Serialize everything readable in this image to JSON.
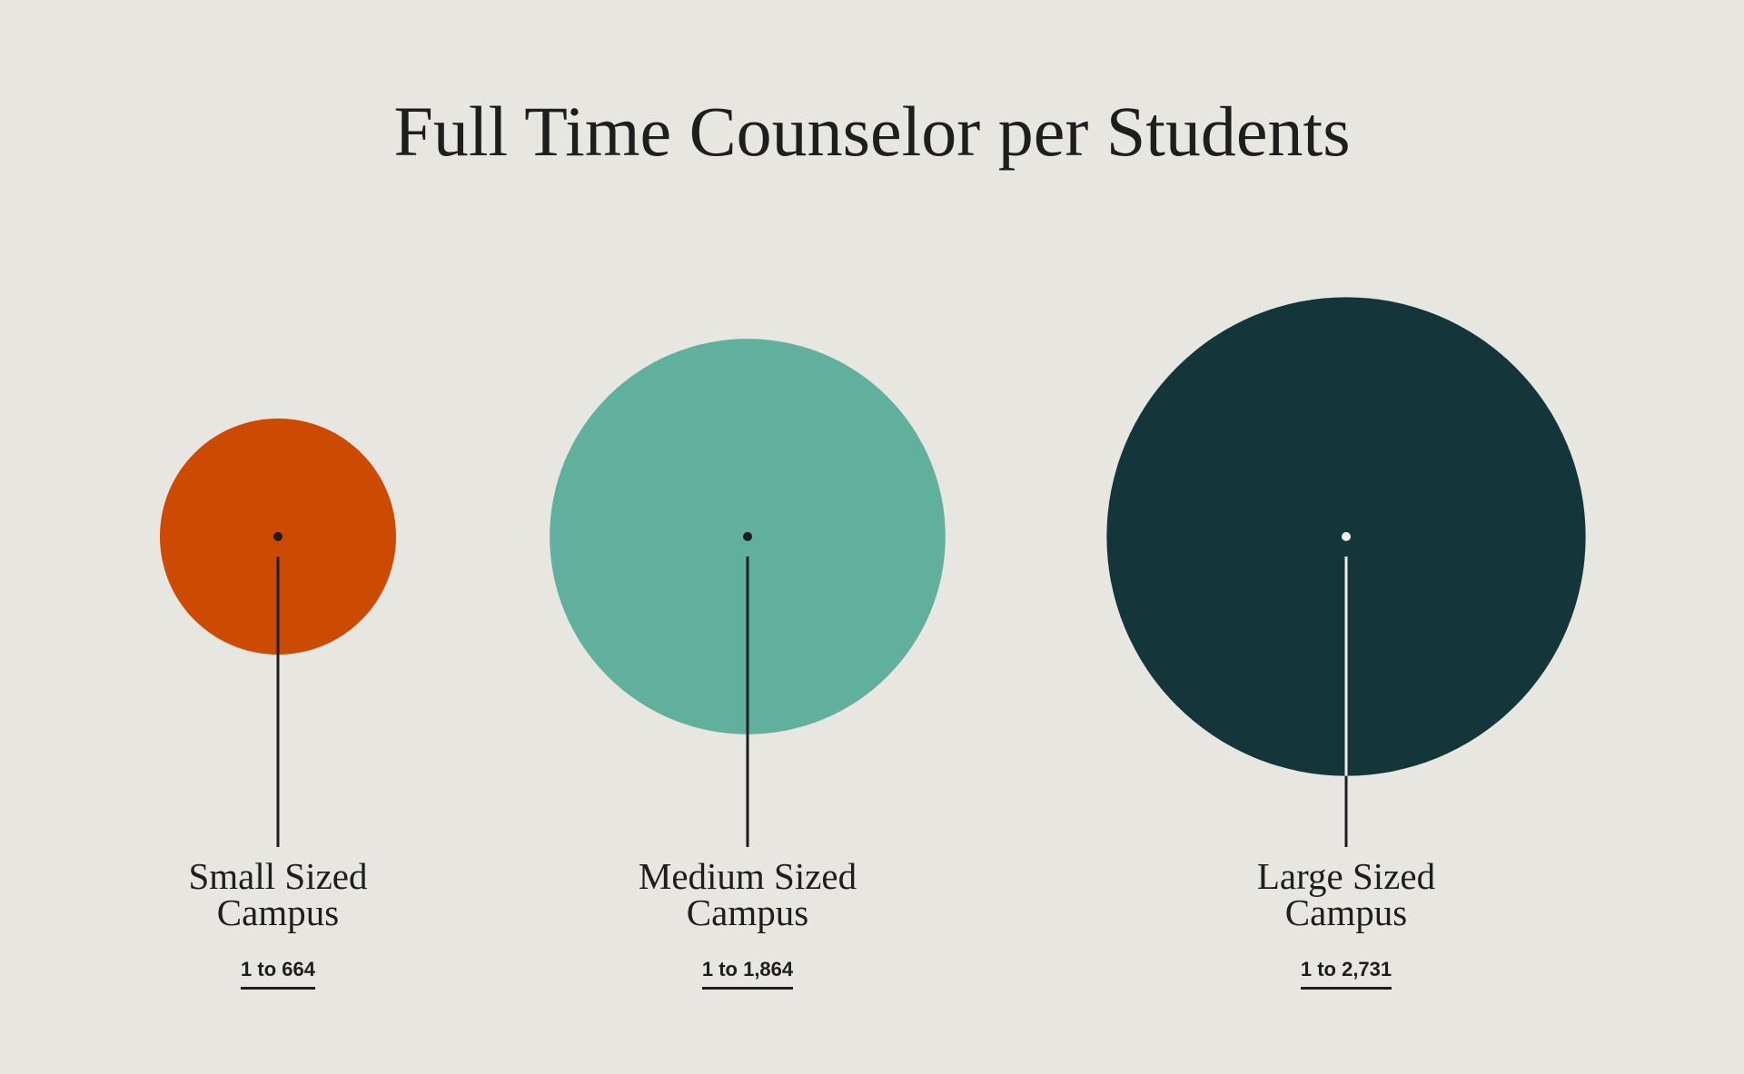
{
  "chart_data": {
    "type": "bubble",
    "title": "Full Time Counselor per Students",
    "categories": [
      "Small Sized Campus",
      "Medium Sized Campus",
      "Large Sized Campus"
    ],
    "values": [
      664,
      1864,
      2731
    ],
    "value_labels": [
      "1 to 664",
      "1 to 1,864",
      "1 to 2,731"
    ],
    "colors": [
      "#cc4a02",
      "#61af9d",
      "#14363a"
    ]
  }
}
